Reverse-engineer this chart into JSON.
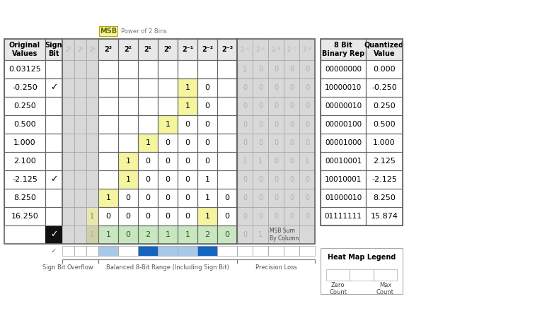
{
  "original_values": [
    "0.03125",
    "-0.250",
    "0.250",
    "0.500",
    "1.000",
    "2.100",
    "-2.125",
    "8.250",
    "16.250"
  ],
  "sign_bits": [
    "",
    "✓",
    "",
    "",
    "",
    "",
    "✓",
    "",
    ""
  ],
  "col_headers_gray_left": [
    "2⁶",
    "2⁵",
    "2⁴"
  ],
  "col_headers_main": [
    "2³",
    "2²",
    "2¹",
    "2⁰",
    "2⁻¹",
    "2⁻²",
    "2⁻³"
  ],
  "col_headers_gray_right": [
    "2⁻⁴",
    "2⁻⁵",
    "2⁻⁶",
    "2⁻⁷",
    "2⁻⁸"
  ],
  "bits_gray_left": [
    [
      "",
      "",
      ""
    ],
    [
      "",
      "",
      ""
    ],
    [
      "",
      "",
      ""
    ],
    [
      "",
      "",
      ""
    ],
    [
      "",
      "",
      ""
    ],
    [
      "",
      "",
      ""
    ],
    [
      "",
      "",
      ""
    ],
    [
      "",
      "",
      ""
    ],
    [
      "",
      "",
      "1"
    ]
  ],
  "bits_main": [
    [
      "",
      "",
      "",
      "",
      "",
      "",
      ""
    ],
    [
      "",
      "",
      "",
      "",
      "1",
      "0",
      ""
    ],
    [
      "",
      "",
      "",
      "",
      "1",
      "0",
      ""
    ],
    [
      "",
      "",
      "",
      "1",
      "0",
      "0",
      ""
    ],
    [
      "",
      "",
      "1",
      "0",
      "0",
      "0",
      ""
    ],
    [
      "",
      "1",
      "0",
      "0",
      "0",
      "0",
      ""
    ],
    [
      "",
      "1",
      "0",
      "0",
      "0",
      "1",
      ""
    ],
    [
      "1",
      "0",
      "0",
      "0",
      "0",
      "1",
      "0"
    ],
    [
      "0",
      "0",
      "0",
      "0",
      "0",
      "1",
      "0"
    ]
  ],
  "bits_gray_right": [
    [
      "1",
      "0",
      "0",
      "0",
      "0"
    ],
    [
      "0",
      "0",
      "0",
      "0",
      "0"
    ],
    [
      "0",
      "0",
      "0",
      "0",
      "0"
    ],
    [
      "0",
      "0",
      "0",
      "0",
      "0"
    ],
    [
      "0",
      "0",
      "0",
      "0",
      "0"
    ],
    [
      "1",
      "1",
      "0",
      "0",
      "1"
    ],
    [
      "0",
      "0",
      "0",
      "0",
      "0"
    ],
    [
      "0",
      "0",
      "0",
      "0",
      "0"
    ],
    [
      "0",
      "0",
      "0",
      "0",
      "0"
    ]
  ],
  "sum_row_gray_left": [
    "",
    "",
    "1"
  ],
  "sum_row_main": [
    "1",
    "0",
    "2",
    "1",
    "1",
    "2",
    "0"
  ],
  "sum_row_gray_right": [
    "0",
    "1",
    "",
    "",
    ""
  ],
  "binary_reps": [
    "00000000",
    "10000010",
    "00000010",
    "00000100",
    "00001000",
    "00010001",
    "10010001",
    "01000010",
    "01111111"
  ],
  "quantized_values": [
    "0.000",
    "-0.250",
    "0.250",
    "0.500",
    "1.000",
    "2.125",
    "-2.125",
    "8.250",
    "15.874"
  ],
  "heatmap_counts_main": [
    1,
    0,
    2,
    1,
    1,
    2,
    0
  ],
  "heatmap_max": 2,
  "yellow_color": "#f5f5a0",
  "green_color": "#c8e6c0",
  "gray_text": "#b0b0b0",
  "gray_bg": "#d8d8d8",
  "header_bg": "#e8e8e8",
  "black_bg": "#111111",
  "blue_low": "#a8c8e8",
  "blue_high": "#1565c0",
  "white": "#ffffff",
  "border_color": "#aaaaaa",
  "dark_border": "#666666"
}
